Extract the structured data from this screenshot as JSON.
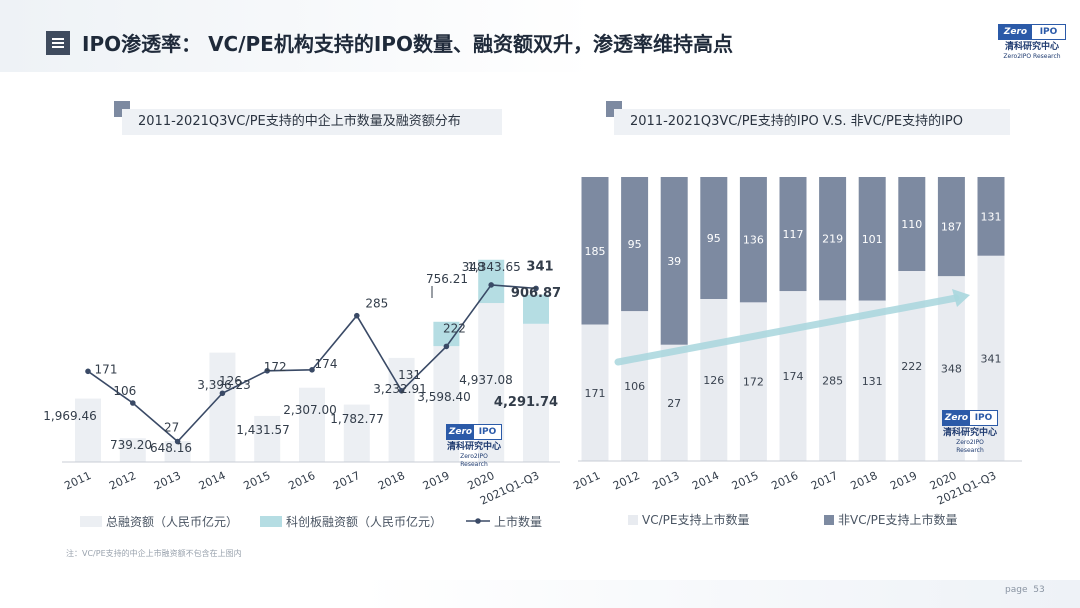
{
  "header": {
    "title": "IPO渗透率： VC/PE机构支持的IPO数量、融资额双升，渗透率维持高点"
  },
  "logo": {
    "zero": "Zero",
    "ipo": "IPO",
    "cn": "清科研究中心",
    "en": "Zero2IPO Research"
  },
  "chart_data": [
    {
      "type": "bar",
      "title": "2011-2021Q3VC/PE支持的中企上市数量及融资额分布",
      "categories": [
        "2011",
        "2012",
        "2013",
        "2014",
        "2015",
        "2016",
        "2017",
        "2018",
        "2019",
        "2020",
        "2021Q1-Q3"
      ],
      "series": [
        {
          "name": "总融资额（人民币亿元）",
          "kind": "bar",
          "values": [
            1969.46,
            739.2,
            648.16,
            3396.23,
            1431.57,
            2307.0,
            1782.77,
            3232.91,
            3598.4,
            4937.08,
            4291.74
          ],
          "labels": [
            "1,969.46",
            "739.20",
            "648.16",
            "3,396.23",
            "1,431.57",
            "2,307.00",
            "1,782.77",
            "3,232.91",
            "3,598.40",
            "4,937.08",
            "4,291.74"
          ],
          "color": "#eceff3"
        },
        {
          "name": "科创板融资额（人民币亿元）",
          "kind": "bar",
          "stacked": true,
          "values": [
            null,
            null,
            null,
            null,
            null,
            null,
            null,
            null,
            756.21,
            1343.65,
            906.87
          ],
          "labels": [
            "",
            "",
            "",
            "",
            "",
            "",
            "",
            "",
            "756.21",
            "1,343.65",
            "906.87"
          ],
          "color": "#b5dde3"
        },
        {
          "name": "上市数量",
          "kind": "line",
          "values": [
            171,
            106,
            27,
            126,
            172,
            174,
            285,
            131,
            222,
            348,
            341
          ],
          "color": "#3a4a66"
        }
      ]
    },
    {
      "type": "bar",
      "stacked": true,
      "normalized": true,
      "title": "2011-2021Q3VC/PE支持的IPO V.S. 非VC/PE支持的IPO",
      "categories": [
        "2011",
        "2012",
        "2013",
        "2014",
        "2015",
        "2016",
        "2017",
        "2018",
        "2019",
        "2020",
        "2021Q1-Q3"
      ],
      "series": [
        {
          "name": "VC/PE支持上市数量",
          "values": [
            171,
            106,
            27,
            126,
            172,
            174,
            285,
            131,
            222,
            348,
            341
          ],
          "color": "#e8ebf0"
        },
        {
          "name": "非VC/PE支持上市数量",
          "values": [
            185,
            95,
            39,
            95,
            136,
            117,
            219,
            101,
            110,
            187,
            131
          ],
          "color": "#7d8aa1"
        }
      ]
    }
  ],
  "footnote": "注：VC/PE支持的中企上市融资额不包含在上图内",
  "page": {
    "label": "page",
    "number": "53"
  }
}
